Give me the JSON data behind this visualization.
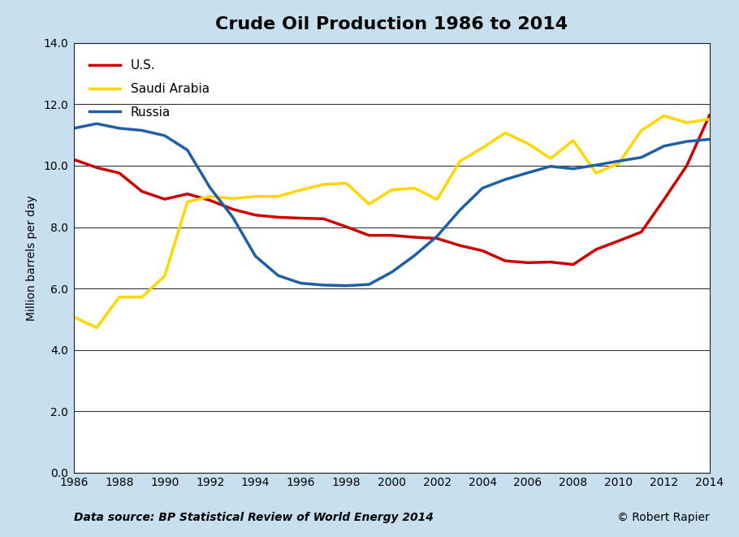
{
  "title": "Crude Oil Production 1986 to 2014",
  "ylabel": "Million barrels per day",
  "footnote_left": "Data source: BP Statistical Review of World Energy 2014",
  "footnote_right": "© Robert Rapier",
  "background_color": "#c8dff0",
  "plot_background_color": "#ffffff",
  "ylim": [
    0.0,
    14.0
  ],
  "ytick_step": 2.0,
  "years": [
    1986,
    1987,
    1988,
    1989,
    1990,
    1991,
    1992,
    1993,
    1994,
    1995,
    1996,
    1997,
    1998,
    1999,
    2000,
    2001,
    2002,
    2003,
    2004,
    2005,
    2006,
    2007,
    2008,
    2009,
    2010,
    2011,
    2012,
    2013,
    2014
  ],
  "us": [
    10.2,
    9.94,
    9.76,
    9.16,
    8.91,
    9.08,
    8.87,
    8.58,
    8.39,
    8.32,
    8.29,
    8.27,
    8.01,
    7.73,
    7.73,
    7.67,
    7.63,
    7.4,
    7.23,
    6.9,
    6.84,
    6.86,
    6.78,
    7.27,
    7.55,
    7.84,
    8.9,
    10.0,
    11.64
  ],
  "saudi": [
    5.07,
    4.72,
    5.72,
    5.72,
    6.41,
    8.82,
    9.0,
    8.93,
    9.0,
    9.0,
    9.21,
    9.39,
    9.43,
    8.75,
    9.21,
    9.27,
    8.9,
    10.14,
    10.58,
    11.07,
    10.72,
    10.24,
    10.82,
    9.76,
    10.07,
    11.15,
    11.63,
    11.4,
    11.52
  ],
  "russia": [
    11.22,
    11.37,
    11.22,
    11.15,
    10.98,
    10.51,
    9.28,
    8.32,
    7.05,
    6.42,
    6.17,
    6.11,
    6.09,
    6.13,
    6.53,
    7.07,
    7.7,
    8.55,
    9.27,
    9.55,
    9.77,
    9.98,
    9.9,
    10.02,
    10.15,
    10.27,
    10.64,
    10.79,
    10.86
  ],
  "us_color": "#cc0000",
  "saudi_color": "#ffd700",
  "russia_color": "#1f5fa6",
  "line_width": 2.5,
  "legend_labels": [
    "U.S.",
    "Saudi Arabia",
    "Russia"
  ],
  "title_fontsize": 16,
  "axis_label_fontsize": 10,
  "tick_fontsize": 10,
  "footnote_fontsize": 10,
  "grid_color": "#333333",
  "grid_linewidth": 0.8
}
